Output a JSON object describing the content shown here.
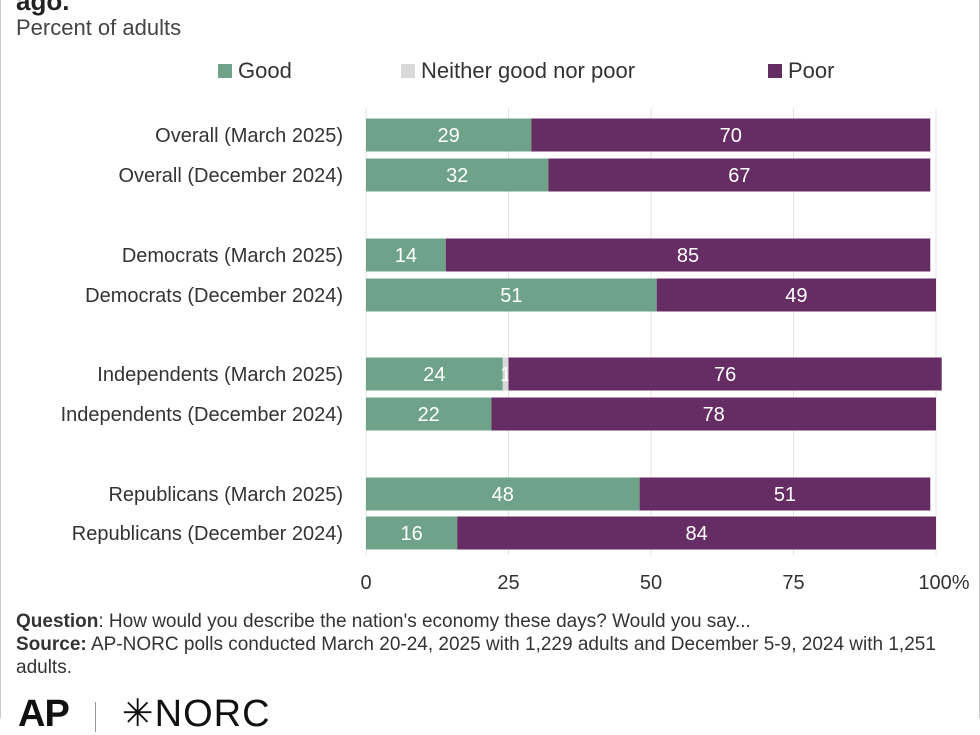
{
  "title": "ago.",
  "subtitle": "Percent of adults",
  "legend": [
    {
      "label": "Good",
      "color": "#6fa389"
    },
    {
      "label": "Neither good nor poor",
      "color": "#d9d9d9"
    },
    {
      "label": "Poor",
      "color": "#652d63"
    }
  ],
  "chart_data": {
    "type": "bar",
    "orientation": "horizontal",
    "stacked": true,
    "categories": [
      "Overall (March 2025)",
      "Overall (December 2024)",
      "Democrats (March 2025)",
      "Democrats (December 2024)",
      "Independents (March 2025)",
      "Independents (December 2024)",
      "Republicans (March 2025)",
      "Republicans (December 2024)"
    ],
    "series": [
      {
        "name": "Good",
        "color": "#6fa389",
        "values": [
          29,
          32,
          14,
          51,
          24,
          22,
          48,
          16
        ]
      },
      {
        "name": "Neither good nor poor",
        "color": "#d9d9d9",
        "values": [
          0,
          0,
          0,
          0,
          1,
          0,
          0,
          0
        ]
      },
      {
        "name": "Poor",
        "color": "#652d63",
        "values": [
          70,
          67,
          85,
          49,
          76,
          78,
          51,
          84
        ]
      }
    ],
    "xlim": [
      0,
      100
    ],
    "xticks": [
      "0",
      "25",
      "50",
      "75",
      "100%"
    ],
    "legend_position": "top",
    "grid": true
  },
  "notes": {
    "question_label": "Question",
    "question_text": ": How would you describe the nation's economy these days? Would you say...",
    "source_label": "Source:",
    "source_text": " AP-NORC polls conducted March 20-24, 2025 with 1,229 adults and December 5-9, 2024 with 1,251 adults."
  },
  "logos": {
    "ap": "AP",
    "norc": "✳NORC"
  }
}
